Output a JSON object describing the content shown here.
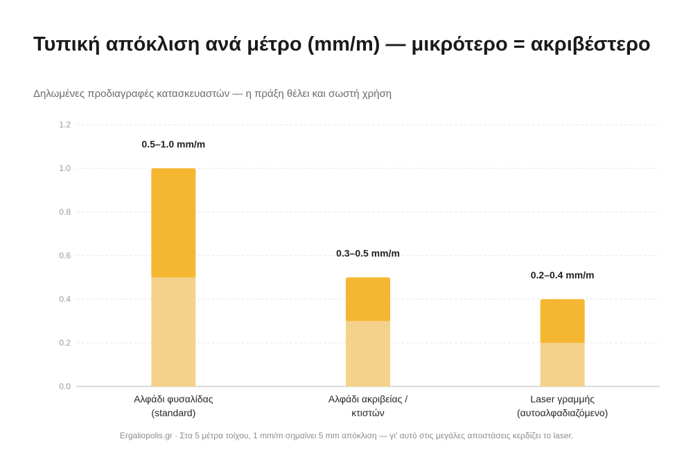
{
  "title": "Τυπική απόκλιση ανά μέτρο (mm/m) — μικρότερο = ακριβέστερο",
  "subtitle": "Δηλωμένες προδιαγραφές κατασκευαστών — η πράξη θέλει και σωστή χρήση",
  "footnote": "Ergaliopolis.gr · Στα 5 μέτρα τοίχου, 1 mm/m σημαίνει 5 mm απόκλιση — γι' αυτό στις μεγάλες αποστάσεις κερδίζει το laser.",
  "chart_data": {
    "type": "bar",
    "stacked": true,
    "categories": [
      [
        "Αλφάδι φυσαλίδας",
        "(standard)"
      ],
      [
        "Αλφάδι ακριβείας /",
        "κτιστών"
      ],
      [
        "Laser γραμμής",
        "(αυτοαλφαδιαζόμενο)"
      ]
    ],
    "series": [
      {
        "values": [
          0.5,
          0.3,
          0.2
        ],
        "color": "#f5d28c"
      },
      {
        "values": [
          0.5,
          0.2,
          0.2
        ],
        "color": "#f5b731"
      }
    ],
    "data_labels": [
      "0.5–1.0 mm/m",
      "0.3–0.5 mm/m",
      "0.2–0.4 mm/m"
    ],
    "ylim": [
      0,
      1.2
    ],
    "yticks": [
      "0.0",
      "0.2",
      "0.4",
      "0.6",
      "0.8",
      "1.0",
      "1.2"
    ],
    "grid": true,
    "legend": false
  }
}
